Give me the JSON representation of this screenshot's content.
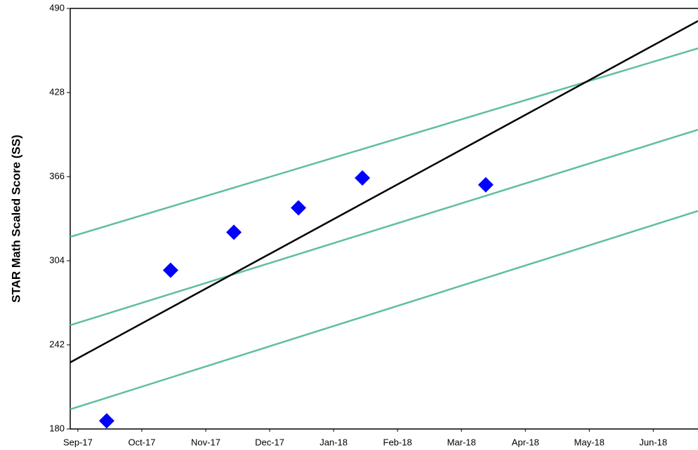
{
  "chart_data": {
    "type": "scatter",
    "ylabel": "STAR Math Scaled Score (SS)",
    "xlim": [
      -0.12,
      9.7
    ],
    "xticks": [
      {
        "value": 0,
        "label": "Sep-17"
      },
      {
        "value": 1,
        "label": "Oct-17"
      },
      {
        "value": 2,
        "label": "Nov-17"
      },
      {
        "value": 3,
        "label": "Dec-17"
      },
      {
        "value": 4,
        "label": "Jan-18"
      },
      {
        "value": 5,
        "label": "Feb-18"
      },
      {
        "value": 6,
        "label": "Mar-18"
      },
      {
        "value": 7,
        "label": "Apr-18"
      },
      {
        "value": 8,
        "label": "May-18"
      },
      {
        "value": 9,
        "label": "Jun-18"
      }
    ],
    "ylim": [
      180,
      490
    ],
    "yticks": [
      180,
      242,
      304,
      366,
      428,
      490
    ],
    "points": {
      "color": "#0000ff",
      "x": [
        0.45,
        1.45,
        2.44,
        3.45,
        4.45,
        6.38
      ],
      "values": [
        186,
        297,
        325,
        343,
        365,
        360
      ]
    },
    "series": [
      {
        "color": "#5fbf9a",
        "x": [
          -0.12,
          9.7
        ],
        "values": [
          321.6,
          460.6
        ]
      },
      {
        "color": "#5fbf9a",
        "x": [
          -0.12,
          9.7
        ],
        "values": [
          256.5,
          400.6
        ]
      },
      {
        "color": "#5fbf9a",
        "x": [
          -0.12,
          9.7
        ],
        "values": [
          194.5,
          340.7
        ]
      },
      {
        "color": "#000000",
        "x": [
          -0.12,
          9.7
        ],
        "values": [
          229.1,
          480.7
        ]
      }
    ]
  }
}
